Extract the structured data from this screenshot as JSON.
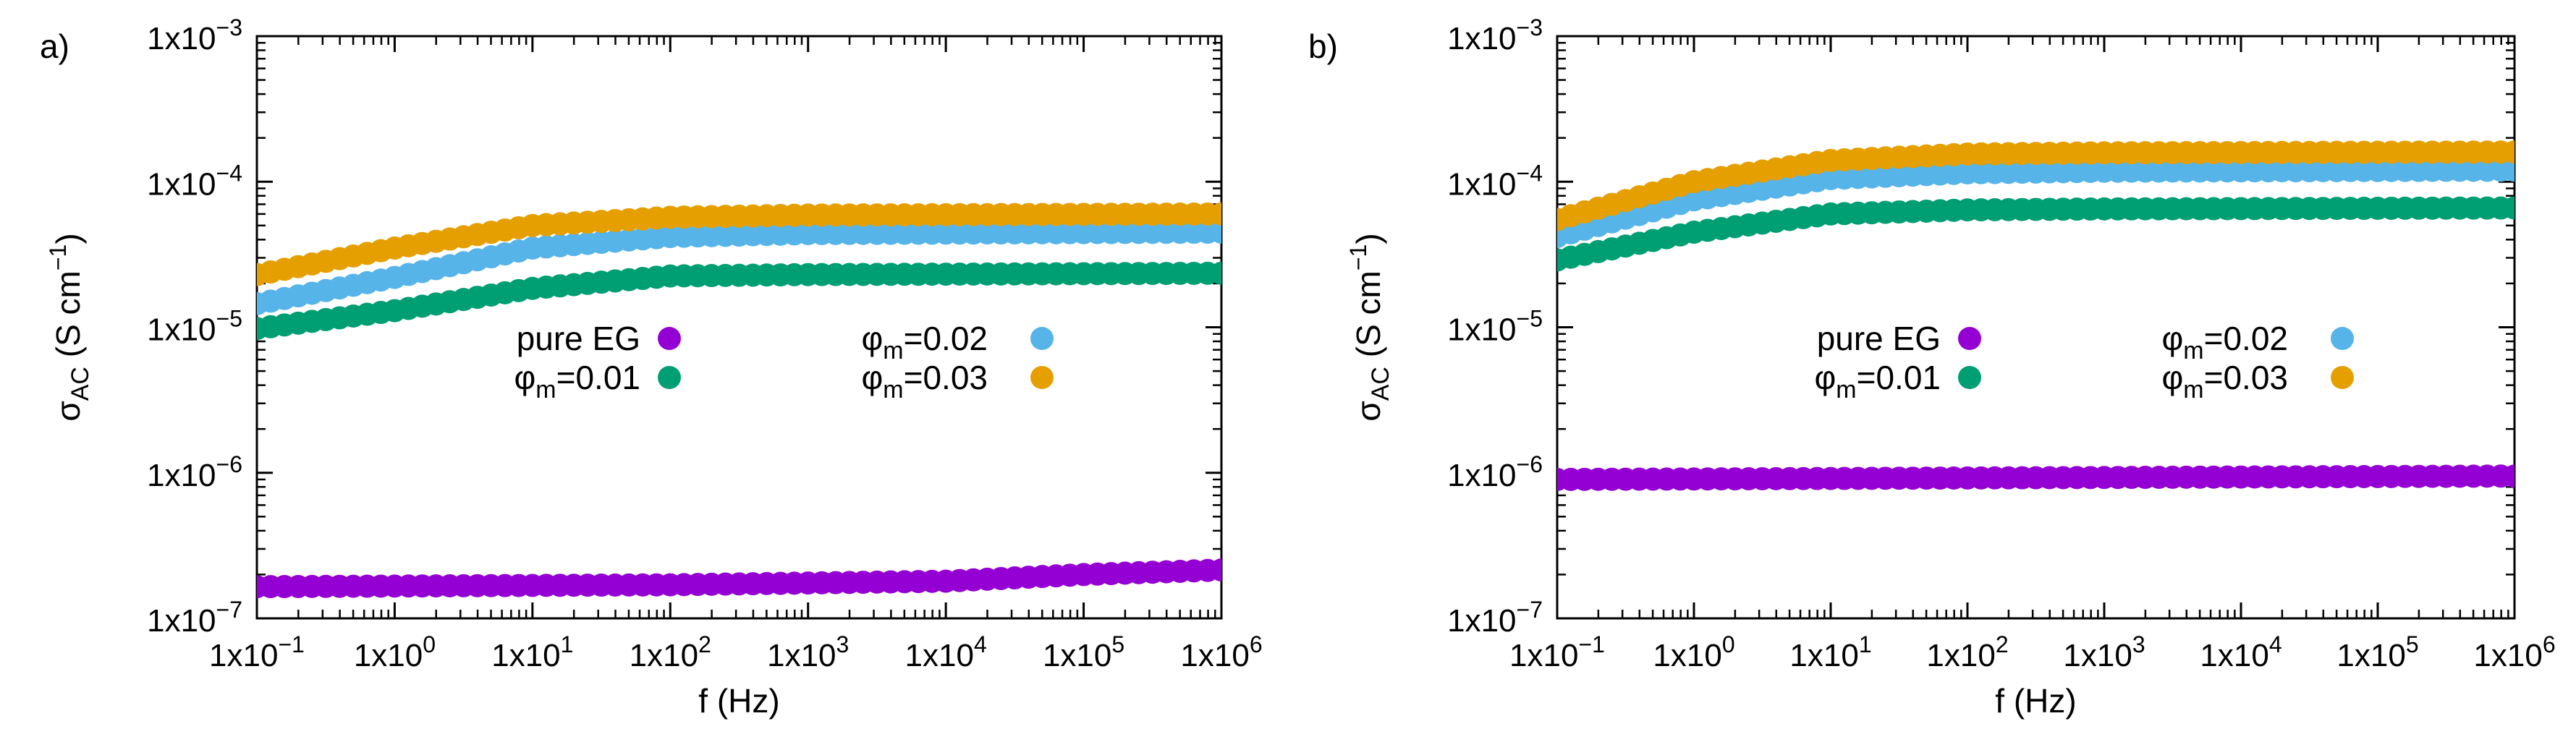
{
  "chart_data": [
    {
      "panel_label": "a)",
      "type": "scatter",
      "x_scale": "log",
      "y_scale": "log",
      "xlim": [
        0.1,
        1000000
      ],
      "ylim": [
        1e-07,
        0.001
      ],
      "xlabel": "f (Hz)",
      "ylabel": {
        "main": "σ",
        "sub": "AC",
        "rest": " (S cm",
        "sup": "−1",
        "close": ")"
      },
      "x_ticks": [
        {
          "exp": -1,
          "label": "1x10",
          "sup": "−1"
        },
        {
          "exp": 0,
          "label": "1x10",
          "sup": "0"
        },
        {
          "exp": 1,
          "label": "1x10",
          "sup": "1"
        },
        {
          "exp": 2,
          "label": "1x10",
          "sup": "2"
        },
        {
          "exp": 3,
          "label": "1x10",
          "sup": "3"
        },
        {
          "exp": 4,
          "label": "1x10",
          "sup": "4"
        },
        {
          "exp": 5,
          "label": "1x10",
          "sup": "5"
        },
        {
          "exp": 6,
          "label": "1x10",
          "sup": "6"
        }
      ],
      "y_ticks": [
        {
          "exp": -7,
          "label": "1x10",
          "sup": "−7"
        },
        {
          "exp": -6,
          "label": "1x10",
          "sup": "−6"
        },
        {
          "exp": -5,
          "label": "1x10",
          "sup": "−5"
        },
        {
          "exp": -4,
          "label": "1x10",
          "sup": "−4"
        },
        {
          "exp": -3,
          "label": "1x10",
          "sup": "−3"
        }
      ],
      "legend_position": "center",
      "series": [
        {
          "key": "pure",
          "name": "pure EG",
          "symbol": "",
          "sub": "",
          "value": "",
          "color": "#9400d3",
          "trend_log10": [
            [
              -1,
              1.65e-07
            ],
            [
              2,
              1.7e-07
            ],
            [
              4,
              1.8e-07
            ],
            [
              5,
              2e-07
            ],
            [
              6,
              2.15e-07
            ]
          ]
        },
        {
          "key": "m001",
          "name": "",
          "symbol": "φ",
          "sub": "m",
          "value": "=0.01",
          "color": "#009e73",
          "trend_log10": [
            [
              -1,
              9.8e-06
            ],
            [
              0,
              1.3e-05
            ],
            [
              1,
              1.85e-05
            ],
            [
              2,
              2.25e-05
            ],
            [
              3,
              2.3e-05
            ],
            [
              6,
              2.35e-05
            ]
          ]
        },
        {
          "key": "m002",
          "name": "",
          "symbol": "φ",
          "sub": "m",
          "value": "=0.02",
          "color": "#56b4e9",
          "trend_log10": [
            [
              -1,
              1.45e-05
            ],
            [
              0,
              2.2e-05
            ],
            [
              1,
              3.5e-05
            ],
            [
              2,
              4.2e-05
            ],
            [
              3,
              4.4e-05
            ],
            [
              6,
              4.5e-05
            ]
          ]
        },
        {
          "key": "m003",
          "name": "",
          "symbol": "φ",
          "sub": "m",
          "value": "=0.03",
          "color": "#e69f00",
          "trend_log10": [
            [
              -1,
              2.3e-05
            ],
            [
              0,
              3.5e-05
            ],
            [
              1,
              5e-05
            ],
            [
              2,
              5.7e-05
            ],
            [
              3,
              5.9e-05
            ],
            [
              6,
              6e-05
            ]
          ]
        }
      ]
    },
    {
      "panel_label": "b)",
      "type": "scatter",
      "x_scale": "log",
      "y_scale": "log",
      "xlim": [
        0.1,
        1000000
      ],
      "ylim": [
        1e-07,
        0.001
      ],
      "xlabel": "f (Hz)",
      "ylabel": {
        "main": "σ",
        "sub": "AC",
        "rest": " (S cm",
        "sup": "−1",
        "close": ")"
      },
      "x_ticks": [
        {
          "exp": -1,
          "label": "1x10",
          "sup": "−1"
        },
        {
          "exp": 0,
          "label": "1x10",
          "sup": "0"
        },
        {
          "exp": 1,
          "label": "1x10",
          "sup": "1"
        },
        {
          "exp": 2,
          "label": "1x10",
          "sup": "2"
        },
        {
          "exp": 3,
          "label": "1x10",
          "sup": "3"
        },
        {
          "exp": 4,
          "label": "1x10",
          "sup": "4"
        },
        {
          "exp": 5,
          "label": "1x10",
          "sup": "5"
        },
        {
          "exp": 6,
          "label": "1x10",
          "sup": "6"
        }
      ],
      "y_ticks": [
        {
          "exp": -7,
          "label": "1x10",
          "sup": "−7"
        },
        {
          "exp": -6,
          "label": "1x10",
          "sup": "−6"
        },
        {
          "exp": -5,
          "label": "1x10",
          "sup": "−5"
        },
        {
          "exp": -4,
          "label": "1x10",
          "sup": "−4"
        },
        {
          "exp": -3,
          "label": "1x10",
          "sup": "−3"
        }
      ],
      "legend_position": "center",
      "series": [
        {
          "key": "pure",
          "name": "pure EG",
          "symbol": "",
          "sub": "",
          "value": "",
          "color": "#9400d3",
          "trend_log10": [
            [
              -1,
              9e-07
            ],
            [
              6,
              9.5e-07
            ]
          ]
        },
        {
          "key": "m001",
          "name": "",
          "symbol": "φ",
          "sub": "m",
          "value": "=0.01",
          "color": "#009e73",
          "trend_log10": [
            [
              -1,
              2.9e-05
            ],
            [
              0,
              4.5e-05
            ],
            [
              1,
              6e-05
            ],
            [
              2,
              6.4e-05
            ],
            [
              3,
              6.5e-05
            ],
            [
              6,
              6.6e-05
            ]
          ]
        },
        {
          "key": "m002",
          "name": "",
          "symbol": "φ",
          "sub": "m",
          "value": "=0.02",
          "color": "#56b4e9",
          "trend_log10": [
            [
              -1,
              4.2e-05
            ],
            [
              0,
              7.5e-05
            ],
            [
              1,
              0.000105
            ],
            [
              2,
              0.000115
            ],
            [
              3,
              0.000118
            ],
            [
              6,
              0.00012
            ]
          ]
        },
        {
          "key": "m003",
          "name": "",
          "symbol": "φ",
          "sub": "m",
          "value": "=0.03",
          "color": "#e69f00",
          "trend_log10": [
            [
              -1,
              5.5e-05
            ],
            [
              0,
              0.0001
            ],
            [
              1,
              0.00014
            ],
            [
              2,
              0.000155
            ],
            [
              3,
              0.000158
            ],
            [
              6,
              0.00016
            ]
          ]
        }
      ]
    }
  ]
}
